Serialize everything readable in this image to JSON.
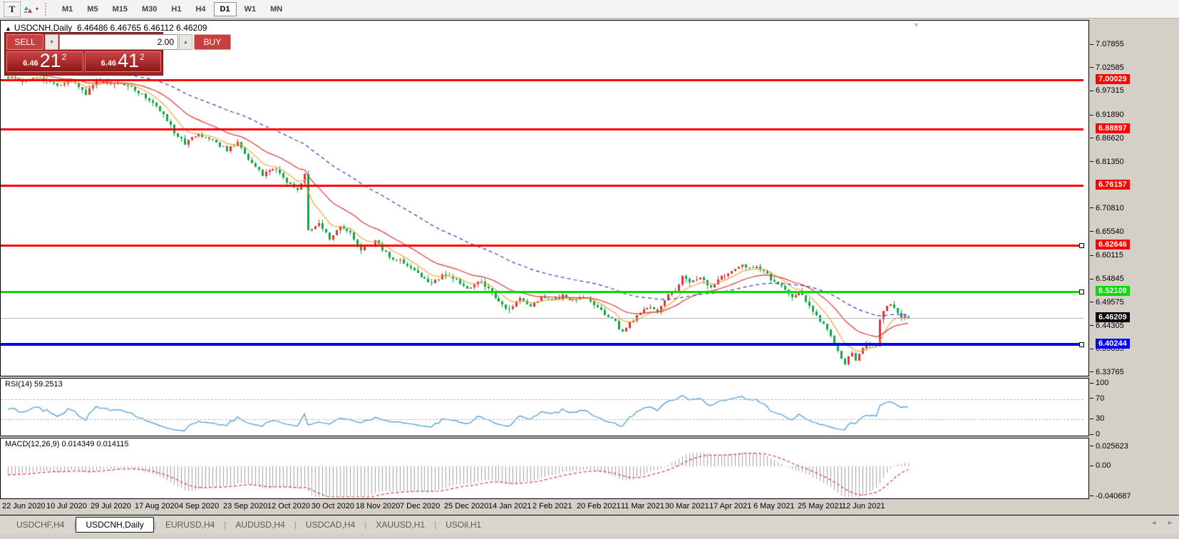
{
  "toolbar": {
    "text_tool_label": "T",
    "caret": "▾",
    "timeframes": [
      "M1",
      "M5",
      "M15",
      "M30",
      "H1",
      "H4",
      "D1",
      "W1",
      "MN"
    ],
    "active_timeframe": "D1"
  },
  "chart_header": {
    "collapse_arrow": "▲",
    "symbol": "USDCNH,Daily",
    "ohlc": "6.46486 6.46765 6.46112 6.46209"
  },
  "trade_panel": {
    "sell_label": "SELL",
    "buy_label": "BUY",
    "volume": "2.00",
    "down_arrow": "▼",
    "up_arrow": "▲",
    "sell_price_prefix": "6.46",
    "sell_price_main": "21",
    "sell_price_sup": "2",
    "buy_price_prefix": "6.46",
    "buy_price_main": "41",
    "buy_price_sup": "2"
  },
  "price_axis": {
    "ticks": [
      "7.07855",
      "7.02585",
      "6.97315",
      "6.91890",
      "6.86620",
      "6.81350",
      "6.70810",
      "6.65540",
      "6.60115",
      "6.54845",
      "6.49575",
      "6.44305",
      "6.39035",
      "6.33765"
    ],
    "level_labels": [
      {
        "text": "7.00029",
        "value": 7.00029,
        "color": "#ff0000",
        "thick": 3,
        "marker": false
      },
      {
        "text": "6.88897",
        "value": 6.88897,
        "color": "#ff0000",
        "thick": 3,
        "marker": false
      },
      {
        "text": "6.76157",
        "value": 6.76157,
        "color": "#ff0000",
        "thick": 3,
        "marker": false
      },
      {
        "text": "6.62646",
        "value": 6.62646,
        "color": "#ff0000",
        "thick": 3,
        "marker": true
      },
      {
        "text": "6.52108",
        "value": 6.52108,
        "color": "#00dd00",
        "thick": 3,
        "marker": true
      },
      {
        "text": "6.40244",
        "value": 6.40244,
        "color": "#0000ff",
        "thick": 4,
        "marker": true
      }
    ],
    "current_price": {
      "text": "6.46209",
      "value": 6.46209
    }
  },
  "rsi_panel": {
    "label": "RSI(14) 59.2513",
    "ticks": [
      {
        "text": "100",
        "value": 100
      },
      {
        "text": "70",
        "value": 70
      },
      {
        "text": "30",
        "value": 30
      },
      {
        "text": "0",
        "value": 0
      }
    ],
    "levels": [
      70,
      30
    ]
  },
  "macd_panel": {
    "label": "MACD(12,26,9) 0.014349 0.014115",
    "ticks": [
      {
        "text": "0.025623",
        "value": 0.025623
      },
      {
        "text": "0.00",
        "value": 0
      },
      {
        "text": "-0.040687",
        "value": -0.040687
      }
    ]
  },
  "date_axis": [
    "22 Jun 2020",
    "10 Jul 2020",
    "29 Jul 2020",
    "17 Aug 2020",
    "4 Sep 2020",
    "23 Sep 2020",
    "12 Oct 2020",
    "30 Oct 2020",
    "18 Nov 2020",
    "7 Dec 2020",
    "25 Dec 2020",
    "14 Jan 2021",
    "2 Feb 2021",
    "20 Feb 2021",
    "11 Mar 2021",
    "30 Mar 2021",
    "17 Apr 2021",
    "6 May 2021",
    "25 May 2021",
    "12 Jun 2021"
  ],
  "tabs": {
    "items": [
      "USDCHF,H4",
      "USDCNH,Daily",
      "EURUSD,H4",
      "AUDUSD,H4",
      "USDCAD,H4",
      "XAUUSD,H1",
      "USOil,H1"
    ],
    "active": "USDCNH,Daily",
    "scroll_left": "◄",
    "scroll_right": "►"
  },
  "chart_data": {
    "type": "candlestick",
    "symbol": "USDCNH",
    "timeframe": "Daily",
    "num_candles": 256,
    "ylim": [
      6.328,
      7.133
    ],
    "last_candle": {
      "o": 6.46486,
      "h": 6.46765,
      "l": 6.46112,
      "c": 6.46209
    },
    "close_anchors": [
      [
        0,
        7.003
      ],
      [
        5,
        6.998
      ],
      [
        9,
        7.004
      ],
      [
        14,
        6.99
      ],
      [
        18,
        7.0
      ],
      [
        22,
        6.968
      ],
      [
        25,
        6.998
      ],
      [
        30,
        6.992
      ],
      [
        36,
        6.978
      ],
      [
        40,
        6.955
      ],
      [
        44,
        6.92
      ],
      [
        47,
        6.882
      ],
      [
        50,
        6.856
      ],
      [
        54,
        6.876
      ],
      [
        58,
        6.862
      ],
      [
        62,
        6.842
      ],
      [
        65,
        6.856
      ],
      [
        68,
        6.82
      ],
      [
        72,
        6.786
      ],
      [
        75,
        6.802
      ],
      [
        79,
        6.772
      ],
      [
        82,
        6.748
      ],
      [
        84,
        6.79
      ],
      [
        85,
        6.66
      ],
      [
        88,
        6.672
      ],
      [
        91,
        6.642
      ],
      [
        94,
        6.666
      ],
      [
        97,
        6.652
      ],
      [
        100,
        6.618
      ],
      [
        104,
        6.634
      ],
      [
        108,
        6.6
      ],
      [
        112,
        6.586
      ],
      [
        116,
        6.562
      ],
      [
        120,
        6.54
      ],
      [
        123,
        6.558
      ],
      [
        127,
        6.548
      ],
      [
        130,
        6.528
      ],
      [
        133,
        6.546
      ],
      [
        136,
        6.532
      ],
      [
        139,
        6.498
      ],
      [
        142,
        6.478
      ],
      [
        145,
        6.506
      ],
      [
        148,
        6.488
      ],
      [
        151,
        6.508
      ],
      [
        154,
        6.498
      ],
      [
        157,
        6.512
      ],
      [
        160,
        6.502
      ],
      [
        163,
        6.512
      ],
      [
        166,
        6.49
      ],
      [
        169,
        6.47
      ],
      [
        172,
        6.452
      ],
      [
        174,
        6.428
      ],
      [
        176,
        6.452
      ],
      [
        179,
        6.472
      ],
      [
        182,
        6.488
      ],
      [
        184,
        6.472
      ],
      [
        186,
        6.505
      ],
      [
        189,
        6.522
      ],
      [
        191,
        6.558
      ],
      [
        193,
        6.542
      ],
      [
        196,
        6.55
      ],
      [
        199,
        6.532
      ],
      [
        202,
        6.552
      ],
      [
        205,
        6.565
      ],
      [
        208,
        6.58
      ],
      [
        210,
        6.572
      ],
      [
        212,
        6.58
      ],
      [
        214,
        6.566
      ],
      [
        216,
        6.55
      ],
      [
        219,
        6.532
      ],
      [
        222,
        6.506
      ],
      [
        224,
        6.52
      ],
      [
        226,
        6.5
      ],
      [
        228,
        6.478
      ],
      [
        230,
        6.456
      ],
      [
        232,
        6.436
      ],
      [
        233,
        6.418
      ],
      [
        234,
        6.402
      ],
      [
        235,
        6.386
      ],
      [
        236,
        6.37
      ],
      [
        237,
        6.36
      ],
      [
        238,
        6.372
      ],
      [
        239,
        6.38
      ],
      [
        240,
        6.368
      ],
      [
        241,
        6.38
      ],
      [
        242,
        6.394
      ],
      [
        243,
        6.4
      ],
      [
        244,
        6.398
      ],
      [
        245,
        6.403
      ],
      [
        246,
        6.398
      ],
      [
        247,
        6.458
      ],
      [
        248,
        6.478
      ],
      [
        249,
        6.49
      ],
      [
        250,
        6.494
      ],
      [
        251,
        6.481
      ],
      [
        252,
        6.471
      ],
      [
        253,
        6.463
      ],
      [
        254,
        6.468
      ],
      [
        255,
        6.46209
      ]
    ],
    "levels": [
      7.00029,
      6.88897,
      6.76157,
      6.62646,
      6.52108,
      6.40244
    ],
    "indicators": {
      "ma_fast_period": 8,
      "ma_mid_period": 21,
      "ma_slow_period": 55,
      "rsi_period": 14,
      "rsi_last": 59.2513,
      "macd_params": [
        12,
        26,
        9
      ],
      "macd_last": [
        0.014349,
        0.014115
      ]
    },
    "colors": {
      "bull": "#e03232",
      "bear": "#0ca844",
      "ma_fast": "#f2a33c",
      "ma_mid": "#e03232",
      "ma_slow": "#2b34c8",
      "rsi": "#3d95db",
      "rsi_level": "#c0c0c0",
      "macd_hist": "#a0a0a0",
      "macd_signal": "#e03232",
      "current_line": "#b8b8b8",
      "level_red": "#ff0000",
      "level_green": "#00dd00",
      "level_blue": "#0000ff"
    }
  }
}
